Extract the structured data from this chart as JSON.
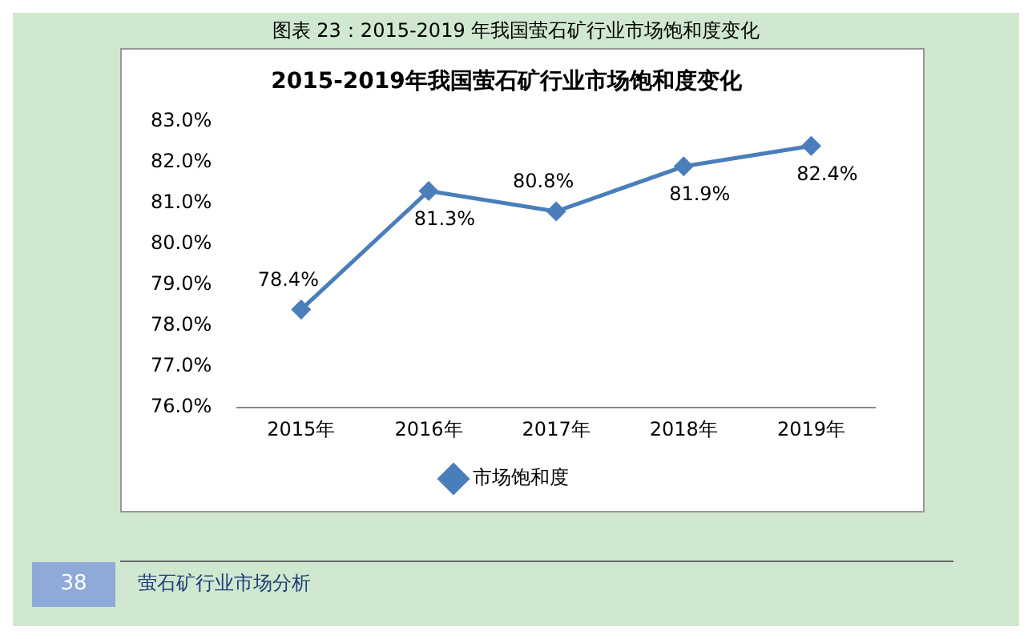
{
  "chart_data": {
    "type": "line",
    "title": "2015-2019年我国萤石矿行业市场饱和度变化",
    "categories": [
      "2015年",
      "2016年",
      "2017年",
      "2018年",
      "2019年"
    ],
    "series": [
      {
        "name": "市场饱和度",
        "color": "#4a7ebb",
        "values": [
          78.4,
          81.3,
          80.8,
          81.9,
          82.4
        ],
        "value_labels": [
          "78.4%",
          "81.3%",
          "80.8%",
          "81.9%",
          "82.4%"
        ]
      }
    ],
    "ylim": [
      76,
      83
    ],
    "yticks": [
      {
        "value": 76,
        "label": "76.0%"
      },
      {
        "value": 77,
        "label": "77.0%"
      },
      {
        "value": 78,
        "label": "78.0%"
      },
      {
        "value": 79,
        "label": "79.0%"
      },
      {
        "value": 80,
        "label": "80.0%"
      },
      {
        "value": 81,
        "label": "81.0%"
      },
      {
        "value": 82,
        "label": "82.0%"
      },
      {
        "value": 83,
        "label": "83.0%"
      }
    ],
    "grid": false,
    "legend": "bottom",
    "marker": "diamond",
    "line_style": "solid",
    "annotations": [
      "图表 23：2015-2019 年我国萤石矿行业市场饱和度变化",
      "38",
      "萤石矿行业市场分析"
    ]
  }
}
